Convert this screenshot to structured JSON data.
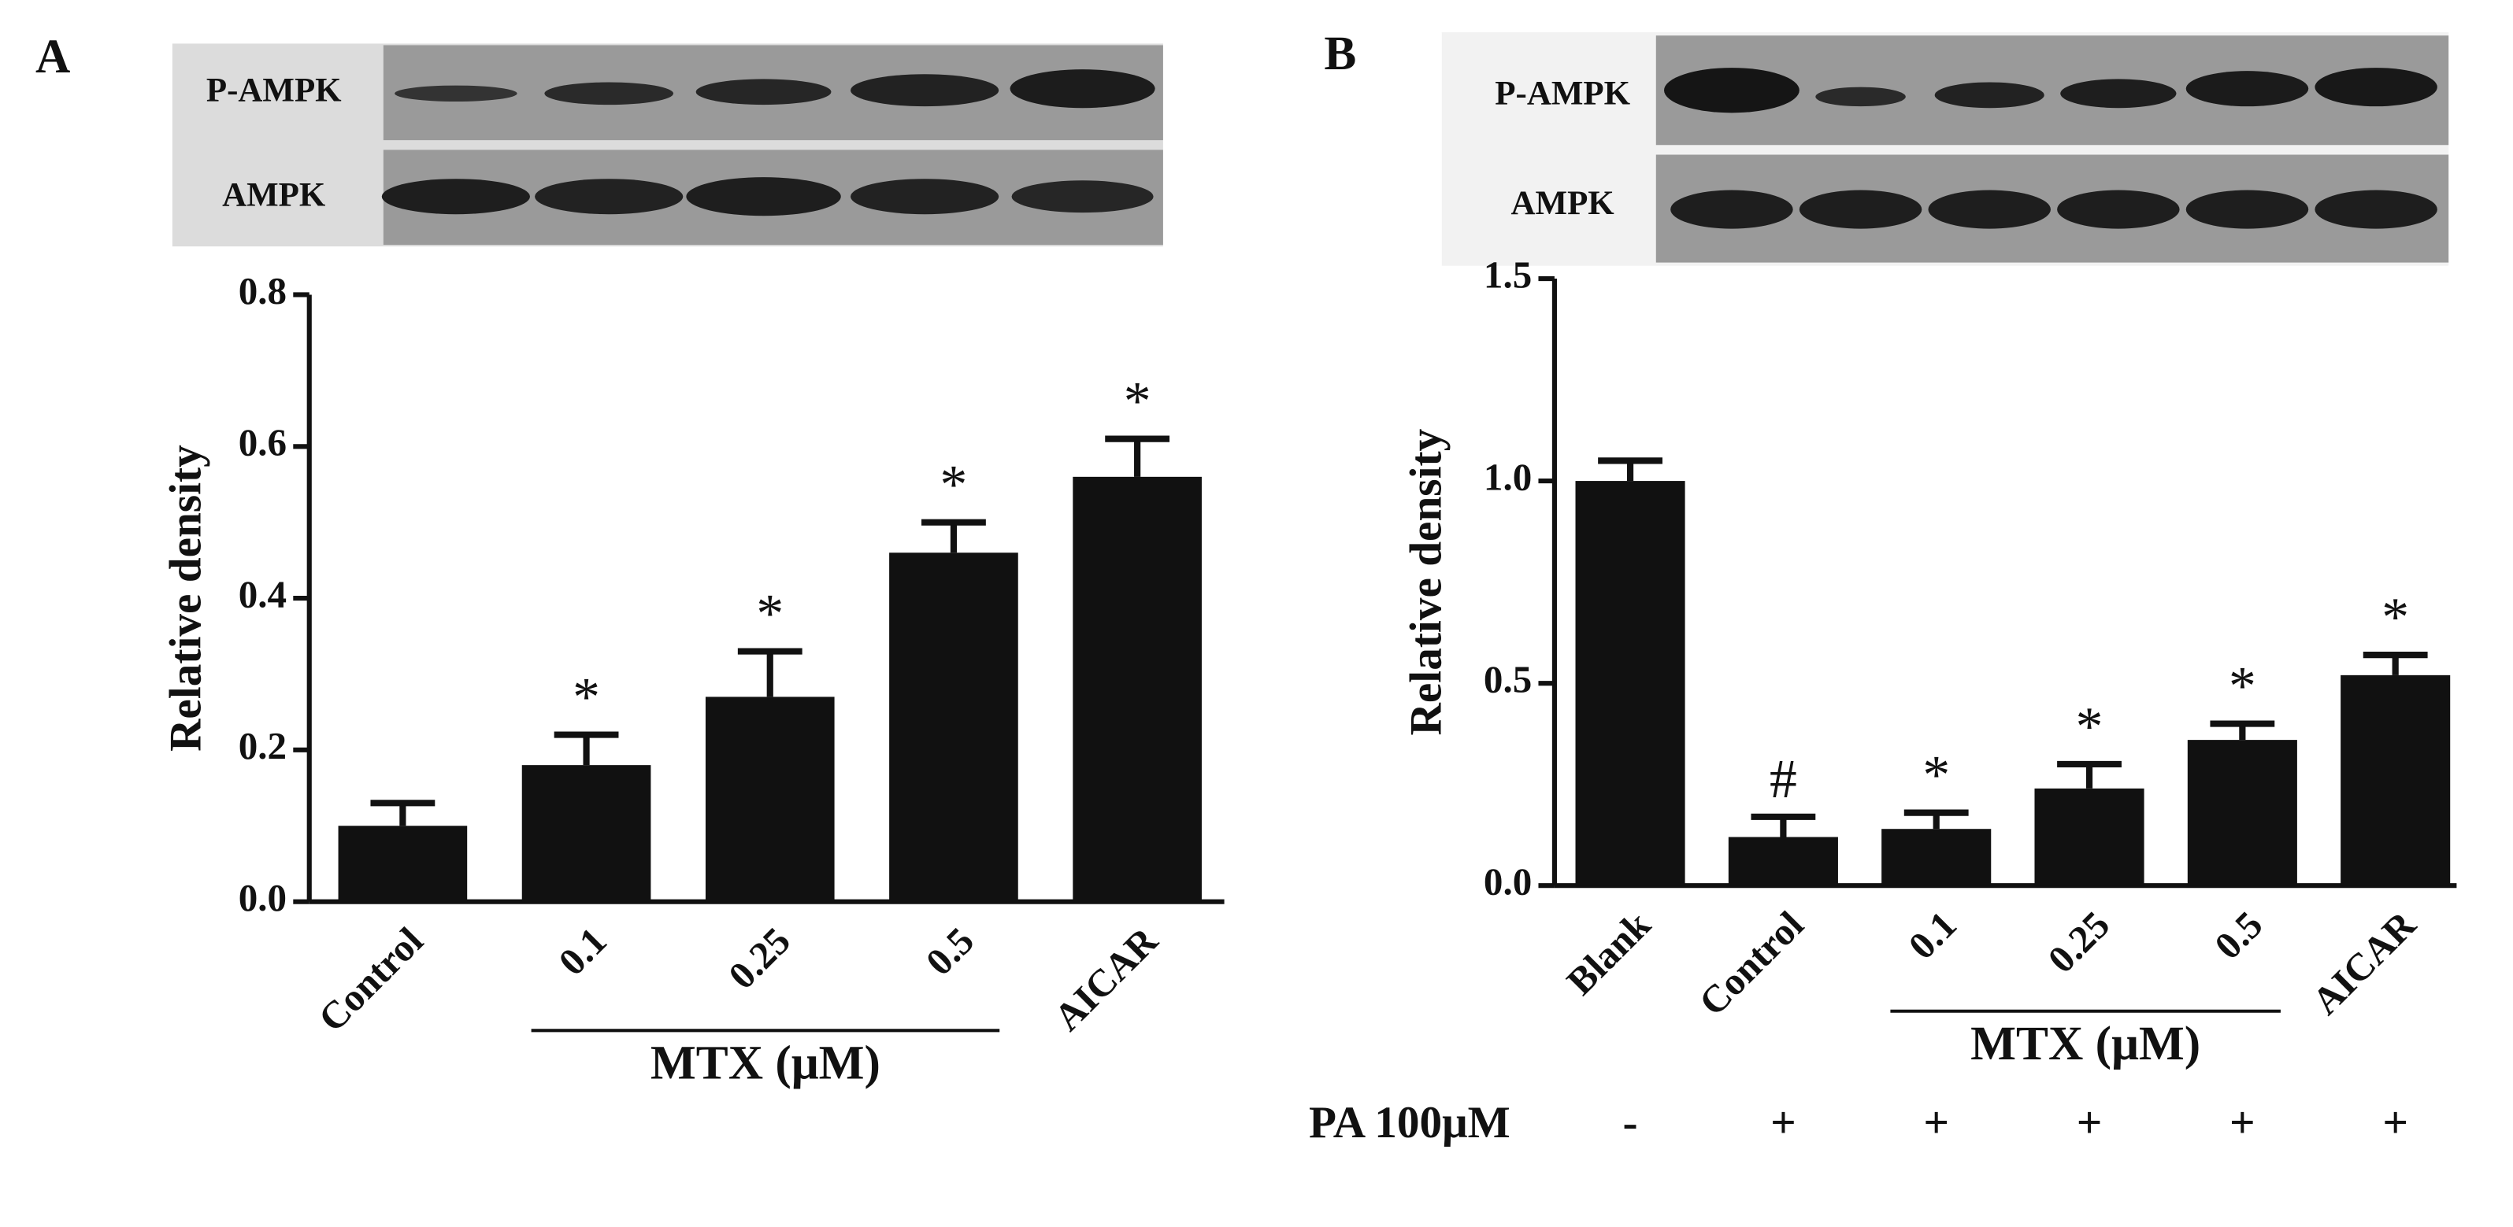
{
  "chart_data": [
    {
      "type": "bar",
      "panel_label": "A",
      "blot_labels": [
        "P-AMPK",
        "AMPK"
      ],
      "categories": [
        "Control",
        "0.1",
        "0.25",
        "0.5",
        "AICAR"
      ],
      "values": [
        0.1,
        0.18,
        0.27,
        0.46,
        0.56
      ],
      "errors": [
        0.03,
        0.04,
        0.06,
        0.04,
        0.05
      ],
      "markers": [
        null,
        "*",
        "*",
        "*",
        "*"
      ],
      "color": "#111111",
      "ylabel": "Relative density",
      "ylim": [
        0,
        0.8
      ],
      "yticks": [
        {
          "value": 0,
          "label": "0.0"
        },
        0.2,
        0.4,
        0.6,
        0.8
      ],
      "group": {
        "label": "MTX (μM)",
        "start": 1,
        "end": 3
      }
    },
    {
      "type": "bar",
      "panel_label": "B",
      "blot_labels": [
        "P-AMPK",
        "AMPK"
      ],
      "categories": [
        "Blank",
        "Control",
        "0.1",
        "0.25",
        "0.5",
        "AICAR"
      ],
      "values": [
        1.0,
        0.12,
        0.14,
        0.24,
        0.36,
        0.52
      ],
      "errors": [
        0.05,
        0.05,
        0.04,
        0.06,
        0.04,
        0.05
      ],
      "markers": [
        null,
        "#",
        "*",
        "*",
        "*",
        "*"
      ],
      "color": "#111111",
      "ylabel": "Relative density",
      "ylim": [
        0,
        1.5
      ],
      "yticks": [
        {
          "value": 0,
          "label": "0.0"
        },
        0.5,
        {
          "value": 1,
          "label": "1.0"
        },
        1.5
      ],
      "group": {
        "label": "MTX (μM)",
        "start": 2,
        "end": 4
      },
      "row": {
        "label": "PA 100μM",
        "values": [
          "-",
          "+",
          "+",
          "+",
          "+",
          "+"
        ]
      }
    }
  ]
}
